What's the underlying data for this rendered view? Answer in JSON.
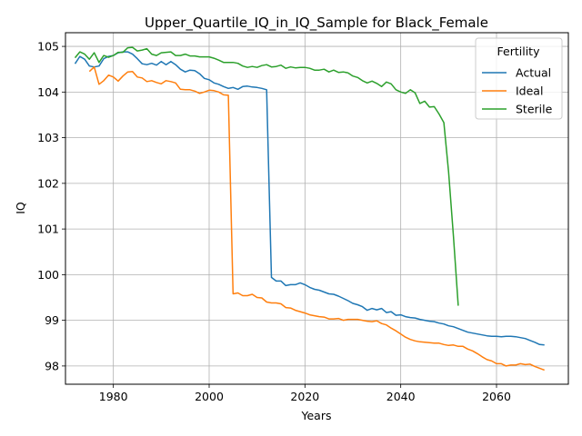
{
  "chart_data": {
    "type": "line",
    "title": "Upper_Quartile_IQ_in_IQ_Sample for Black_Female",
    "xlabel": "Years",
    "ylabel": "IQ",
    "xlim": [
      1970,
      2075
    ],
    "ylim": [
      97.6,
      105.3
    ],
    "xticks": [
      1980,
      2000,
      2020,
      2040,
      2060
    ],
    "yticks": [
      98,
      99,
      100,
      101,
      102,
      103,
      104,
      105
    ],
    "grid": true,
    "legend": {
      "title": "Fertility",
      "position": "top-right"
    },
    "series": [
      {
        "name": "Actual",
        "color": "#1f77b4",
        "points": [
          [
            1972,
            104.62
          ],
          [
            1973,
            104.78
          ],
          [
            1974,
            104.72
          ],
          [
            1975,
            104.57
          ],
          [
            1976,
            104.55
          ],
          [
            1977,
            104.57
          ],
          [
            1978,
            104.73
          ],
          [
            1979,
            104.78
          ],
          [
            1980,
            104.8
          ],
          [
            1981,
            104.86
          ],
          [
            1982,
            104.88
          ],
          [
            1983,
            104.88
          ],
          [
            1984,
            104.83
          ],
          [
            1985,
            104.73
          ],
          [
            1986,
            104.62
          ],
          [
            1987,
            104.6
          ],
          [
            1988,
            104.63
          ],
          [
            1989,
            104.59
          ],
          [
            1990,
            104.67
          ],
          [
            1991,
            104.6
          ],
          [
            1992,
            104.67
          ],
          [
            1993,
            104.6
          ],
          [
            1994,
            104.5
          ],
          [
            1995,
            104.44
          ],
          [
            1996,
            104.48
          ],
          [
            1997,
            104.47
          ],
          [
            1998,
            104.4
          ],
          [
            1999,
            104.3
          ],
          [
            2000,
            104.27
          ],
          [
            2001,
            104.2
          ],
          [
            2002,
            104.17
          ],
          [
            2003,
            104.12
          ],
          [
            2004,
            104.08
          ],
          [
            2005,
            104.1
          ],
          [
            2006,
            104.06
          ],
          [
            2007,
            104.12
          ],
          [
            2008,
            104.13
          ],
          [
            2009,
            104.11
          ],
          [
            2010,
            104.1
          ],
          [
            2011,
            104.08
          ],
          [
            2012,
            104.05
          ],
          [
            2013,
            99.94
          ],
          [
            2014,
            99.86
          ],
          [
            2015,
            99.86
          ],
          [
            2016,
            99.76
          ],
          [
            2017,
            99.78
          ],
          [
            2018,
            99.78
          ],
          [
            2019,
            99.82
          ],
          [
            2020,
            99.78
          ],
          [
            2021,
            99.72
          ],
          [
            2022,
            99.68
          ],
          [
            2023,
            99.66
          ],
          [
            2024,
            99.62
          ],
          [
            2025,
            99.58
          ],
          [
            2026,
            99.57
          ],
          [
            2027,
            99.53
          ],
          [
            2028,
            99.48
          ],
          [
            2029,
            99.43
          ],
          [
            2030,
            99.37
          ],
          [
            2031,
            99.34
          ],
          [
            2032,
            99.3
          ],
          [
            2033,
            99.22
          ],
          [
            2034,
            99.26
          ],
          [
            2035,
            99.23
          ],
          [
            2036,
            99.26
          ],
          [
            2037,
            99.17
          ],
          [
            2038,
            99.19
          ],
          [
            2039,
            99.11
          ],
          [
            2040,
            99.12
          ],
          [
            2041,
            99.08
          ],
          [
            2042,
            99.06
          ],
          [
            2043,
            99.05
          ],
          [
            2044,
            99.02
          ],
          [
            2045,
            99.0
          ],
          [
            2046,
            98.98
          ],
          [
            2047,
            98.97
          ],
          [
            2048,
            98.94
          ],
          [
            2049,
            98.92
          ],
          [
            2050,
            98.88
          ],
          [
            2051,
            98.86
          ],
          [
            2052,
            98.82
          ],
          [
            2053,
            98.78
          ],
          [
            2054,
            98.74
          ],
          [
            2055,
            98.72
          ],
          [
            2056,
            98.7
          ],
          [
            2057,
            98.68
          ],
          [
            2058,
            98.66
          ],
          [
            2059,
            98.65
          ],
          [
            2060,
            98.65
          ],
          [
            2061,
            98.64
          ],
          [
            2062,
            98.65
          ],
          [
            2063,
            98.65
          ],
          [
            2064,
            98.64
          ],
          [
            2065,
            98.62
          ],
          [
            2066,
            98.6
          ],
          [
            2067,
            98.56
          ],
          [
            2068,
            98.52
          ],
          [
            2069,
            98.47
          ],
          [
            2070,
            98.46
          ]
        ]
      },
      {
        "name": "Ideal",
        "color": "#ff7f0e",
        "points": [
          [
            1975,
            104.45
          ],
          [
            1976,
            104.55
          ],
          [
            1977,
            104.17
          ],
          [
            1978,
            104.25
          ],
          [
            1979,
            104.37
          ],
          [
            1980,
            104.33
          ],
          [
            1981,
            104.24
          ],
          [
            1982,
            104.35
          ],
          [
            1983,
            104.44
          ],
          [
            1984,
            104.45
          ],
          [
            1985,
            104.33
          ],
          [
            1986,
            104.31
          ],
          [
            1987,
            104.23
          ],
          [
            1988,
            104.25
          ],
          [
            1989,
            104.21
          ],
          [
            1990,
            104.18
          ],
          [
            1991,
            104.25
          ],
          [
            1992,
            104.23
          ],
          [
            1993,
            104.2
          ],
          [
            1994,
            104.06
          ],
          [
            1995,
            104.05
          ],
          [
            1996,
            104.05
          ],
          [
            1997,
            104.02
          ],
          [
            1998,
            103.97
          ],
          [
            1999,
            104.0
          ],
          [
            2000,
            104.04
          ],
          [
            2001,
            104.03
          ],
          [
            2002,
            104.0
          ],
          [
            2003,
            103.94
          ],
          [
            2004,
            103.93
          ],
          [
            2005,
            99.58
          ],
          [
            2006,
            99.6
          ],
          [
            2007,
            99.54
          ],
          [
            2008,
            99.54
          ],
          [
            2009,
            99.57
          ],
          [
            2010,
            99.5
          ],
          [
            2011,
            99.49
          ],
          [
            2012,
            99.4
          ],
          [
            2013,
            99.38
          ],
          [
            2014,
            99.38
          ],
          [
            2015,
            99.36
          ],
          [
            2016,
            99.28
          ],
          [
            2017,
            99.27
          ],
          [
            2018,
            99.22
          ],
          [
            2019,
            99.19
          ],
          [
            2020,
            99.16
          ],
          [
            2021,
            99.12
          ],
          [
            2022,
            99.1
          ],
          [
            2023,
            99.08
          ],
          [
            2024,
            99.07
          ],
          [
            2025,
            99.03
          ],
          [
            2026,
            99.03
          ],
          [
            2027,
            99.04
          ],
          [
            2028,
            99.0
          ],
          [
            2029,
            99.02
          ],
          [
            2030,
            99.02
          ],
          [
            2031,
            99.02
          ],
          [
            2032,
            99.0
          ],
          [
            2033,
            98.98
          ],
          [
            2034,
            98.97
          ],
          [
            2035,
            98.99
          ],
          [
            2036,
            98.93
          ],
          [
            2037,
            98.9
          ],
          [
            2038,
            98.83
          ],
          [
            2039,
            98.77
          ],
          [
            2040,
            98.7
          ],
          [
            2041,
            98.63
          ],
          [
            2042,
            98.58
          ],
          [
            2043,
            98.55
          ],
          [
            2044,
            98.53
          ],
          [
            2045,
            98.52
          ],
          [
            2046,
            98.51
          ],
          [
            2047,
            98.5
          ],
          [
            2048,
            98.5
          ],
          [
            2049,
            98.47
          ],
          [
            2050,
            98.45
          ],
          [
            2051,
            98.46
          ],
          [
            2052,
            98.43
          ],
          [
            2053,
            98.43
          ],
          [
            2054,
            98.37
          ],
          [
            2055,
            98.33
          ],
          [
            2056,
            98.27
          ],
          [
            2057,
            98.2
          ],
          [
            2058,
            98.14
          ],
          [
            2059,
            98.11
          ],
          [
            2060,
            98.05
          ],
          [
            2061,
            98.05
          ],
          [
            2062,
            98.0
          ],
          [
            2063,
            98.02
          ],
          [
            2064,
            98.02
          ],
          [
            2065,
            98.05
          ],
          [
            2066,
            98.03
          ],
          [
            2067,
            98.04
          ],
          [
            2068,
            97.99
          ],
          [
            2069,
            97.95
          ],
          [
            2070,
            97.91
          ]
        ]
      },
      {
        "name": "Sterile",
        "color": "#2ca02c",
        "points": [
          [
            1972,
            104.75
          ],
          [
            1973,
            104.88
          ],
          [
            1974,
            104.83
          ],
          [
            1975,
            104.72
          ],
          [
            1976,
            104.86
          ],
          [
            1977,
            104.65
          ],
          [
            1978,
            104.8
          ],
          [
            1979,
            104.76
          ],
          [
            1980,
            104.8
          ],
          [
            1981,
            104.87
          ],
          [
            1982,
            104.87
          ],
          [
            1983,
            104.97
          ],
          [
            1984,
            104.98
          ],
          [
            1985,
            104.9
          ],
          [
            1986,
            104.92
          ],
          [
            1987,
            104.95
          ],
          [
            1988,
            104.83
          ],
          [
            1989,
            104.8
          ],
          [
            1990,
            104.86
          ],
          [
            1991,
            104.87
          ],
          [
            1992,
            104.88
          ],
          [
            1993,
            104.8
          ],
          [
            1994,
            104.8
          ],
          [
            1995,
            104.83
          ],
          [
            1996,
            104.79
          ],
          [
            1997,
            104.79
          ],
          [
            1998,
            104.77
          ],
          [
            1999,
            104.77
          ],
          [
            2000,
            104.77
          ],
          [
            2001,
            104.74
          ],
          [
            2002,
            104.7
          ],
          [
            2003,
            104.65
          ],
          [
            2004,
            104.65
          ],
          [
            2005,
            104.65
          ],
          [
            2006,
            104.63
          ],
          [
            2007,
            104.57
          ],
          [
            2008,
            104.54
          ],
          [
            2009,
            104.56
          ],
          [
            2010,
            104.54
          ],
          [
            2011,
            104.58
          ],
          [
            2012,
            104.6
          ],
          [
            2013,
            104.55
          ],
          [
            2014,
            104.56
          ],
          [
            2015,
            104.59
          ],
          [
            2016,
            104.52
          ],
          [
            2017,
            104.55
          ],
          [
            2018,
            104.53
          ],
          [
            2019,
            104.54
          ],
          [
            2020,
            104.54
          ],
          [
            2021,
            104.52
          ],
          [
            2022,
            104.48
          ],
          [
            2023,
            104.48
          ],
          [
            2024,
            104.5
          ],
          [
            2025,
            104.44
          ],
          [
            2026,
            104.48
          ],
          [
            2027,
            104.43
          ],
          [
            2028,
            104.44
          ],
          [
            2029,
            104.42
          ],
          [
            2030,
            104.35
          ],
          [
            2031,
            104.32
          ],
          [
            2032,
            104.25
          ],
          [
            2033,
            104.2
          ],
          [
            2034,
            104.24
          ],
          [
            2035,
            104.19
          ],
          [
            2036,
            104.12
          ],
          [
            2037,
            104.22
          ],
          [
            2038,
            104.18
          ],
          [
            2039,
            104.05
          ],
          [
            2040,
            104.0
          ],
          [
            2041,
            103.97
          ],
          [
            2042,
            104.05
          ],
          [
            2043,
            103.98
          ],
          [
            2044,
            103.75
          ],
          [
            2045,
            103.8
          ],
          [
            2046,
            103.67
          ],
          [
            2047,
            103.68
          ],
          [
            2048,
            103.52
          ],
          [
            2049,
            103.33
          ],
          [
            2050,
            102.25
          ],
          [
            2051,
            100.85
          ],
          [
            2052,
            99.32
          ]
        ]
      }
    ]
  }
}
